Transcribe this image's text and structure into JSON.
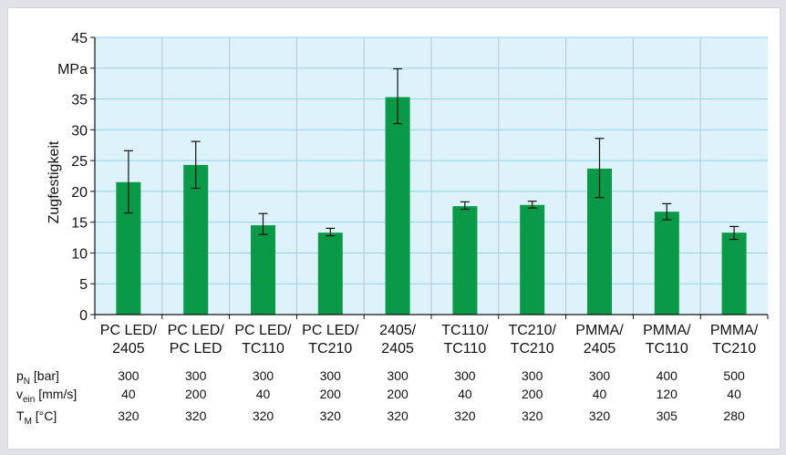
{
  "chart_data": {
    "type": "bar",
    "ylabel": "Zugfestigkeit",
    "yunit": "MPa",
    "ylim": [
      0,
      45
    ],
    "yticks": [
      0,
      5,
      10,
      15,
      20,
      25,
      30,
      35,
      40,
      45
    ],
    "grid": true,
    "categories": [
      [
        "PC LED/",
        "2405"
      ],
      [
        "PC LED/",
        "PC LED"
      ],
      [
        "PC LED/",
        "TC110"
      ],
      [
        "PC LED/",
        "TC210"
      ],
      [
        "2405/",
        "2405"
      ],
      [
        "TC110/",
        "TC110"
      ],
      [
        "TC210/",
        "TC210"
      ],
      [
        "PMMA/",
        "2405"
      ],
      [
        "PMMA/",
        "TC110"
      ],
      [
        "PMMA/",
        "TC210"
      ]
    ],
    "values": [
      21.5,
      24.3,
      14.5,
      13.3,
      35.3,
      17.6,
      17.8,
      23.7,
      16.7,
      13.3
    ],
    "error_low": [
      16.5,
      20.5,
      13.0,
      12.8,
      31.0,
      17.1,
      17.3,
      19.0,
      15.4,
      12.2
    ],
    "error_high": [
      26.6,
      28.1,
      16.4,
      14.0,
      39.9,
      18.3,
      18.4,
      28.6,
      18.0,
      14.3
    ],
    "bar_color": "#0a9a47",
    "plot_bg": "#def2fb",
    "grid_color": "#8fd3ef"
  },
  "params_table": {
    "rows": [
      {
        "label_main": "p",
        "label_sub": "N",
        "label_rest": " [bar]",
        "values": [
          "300",
          "300",
          "300",
          "300",
          "300",
          "300",
          "300",
          "300",
          "400",
          "500"
        ]
      },
      {
        "label_main": "v",
        "label_sub": "ein",
        "label_rest": " [mm/s]",
        "values": [
          "40",
          "200",
          "40",
          "200",
          "200",
          "40",
          "200",
          "40",
          "120",
          "40"
        ]
      },
      {
        "label_main": "T",
        "label_sub": "M",
        "label_rest": " [°C]",
        "values": [
          "320",
          "320",
          "320",
          "320",
          "320",
          "320",
          "320",
          "320",
          "305",
          "280"
        ]
      }
    ]
  }
}
